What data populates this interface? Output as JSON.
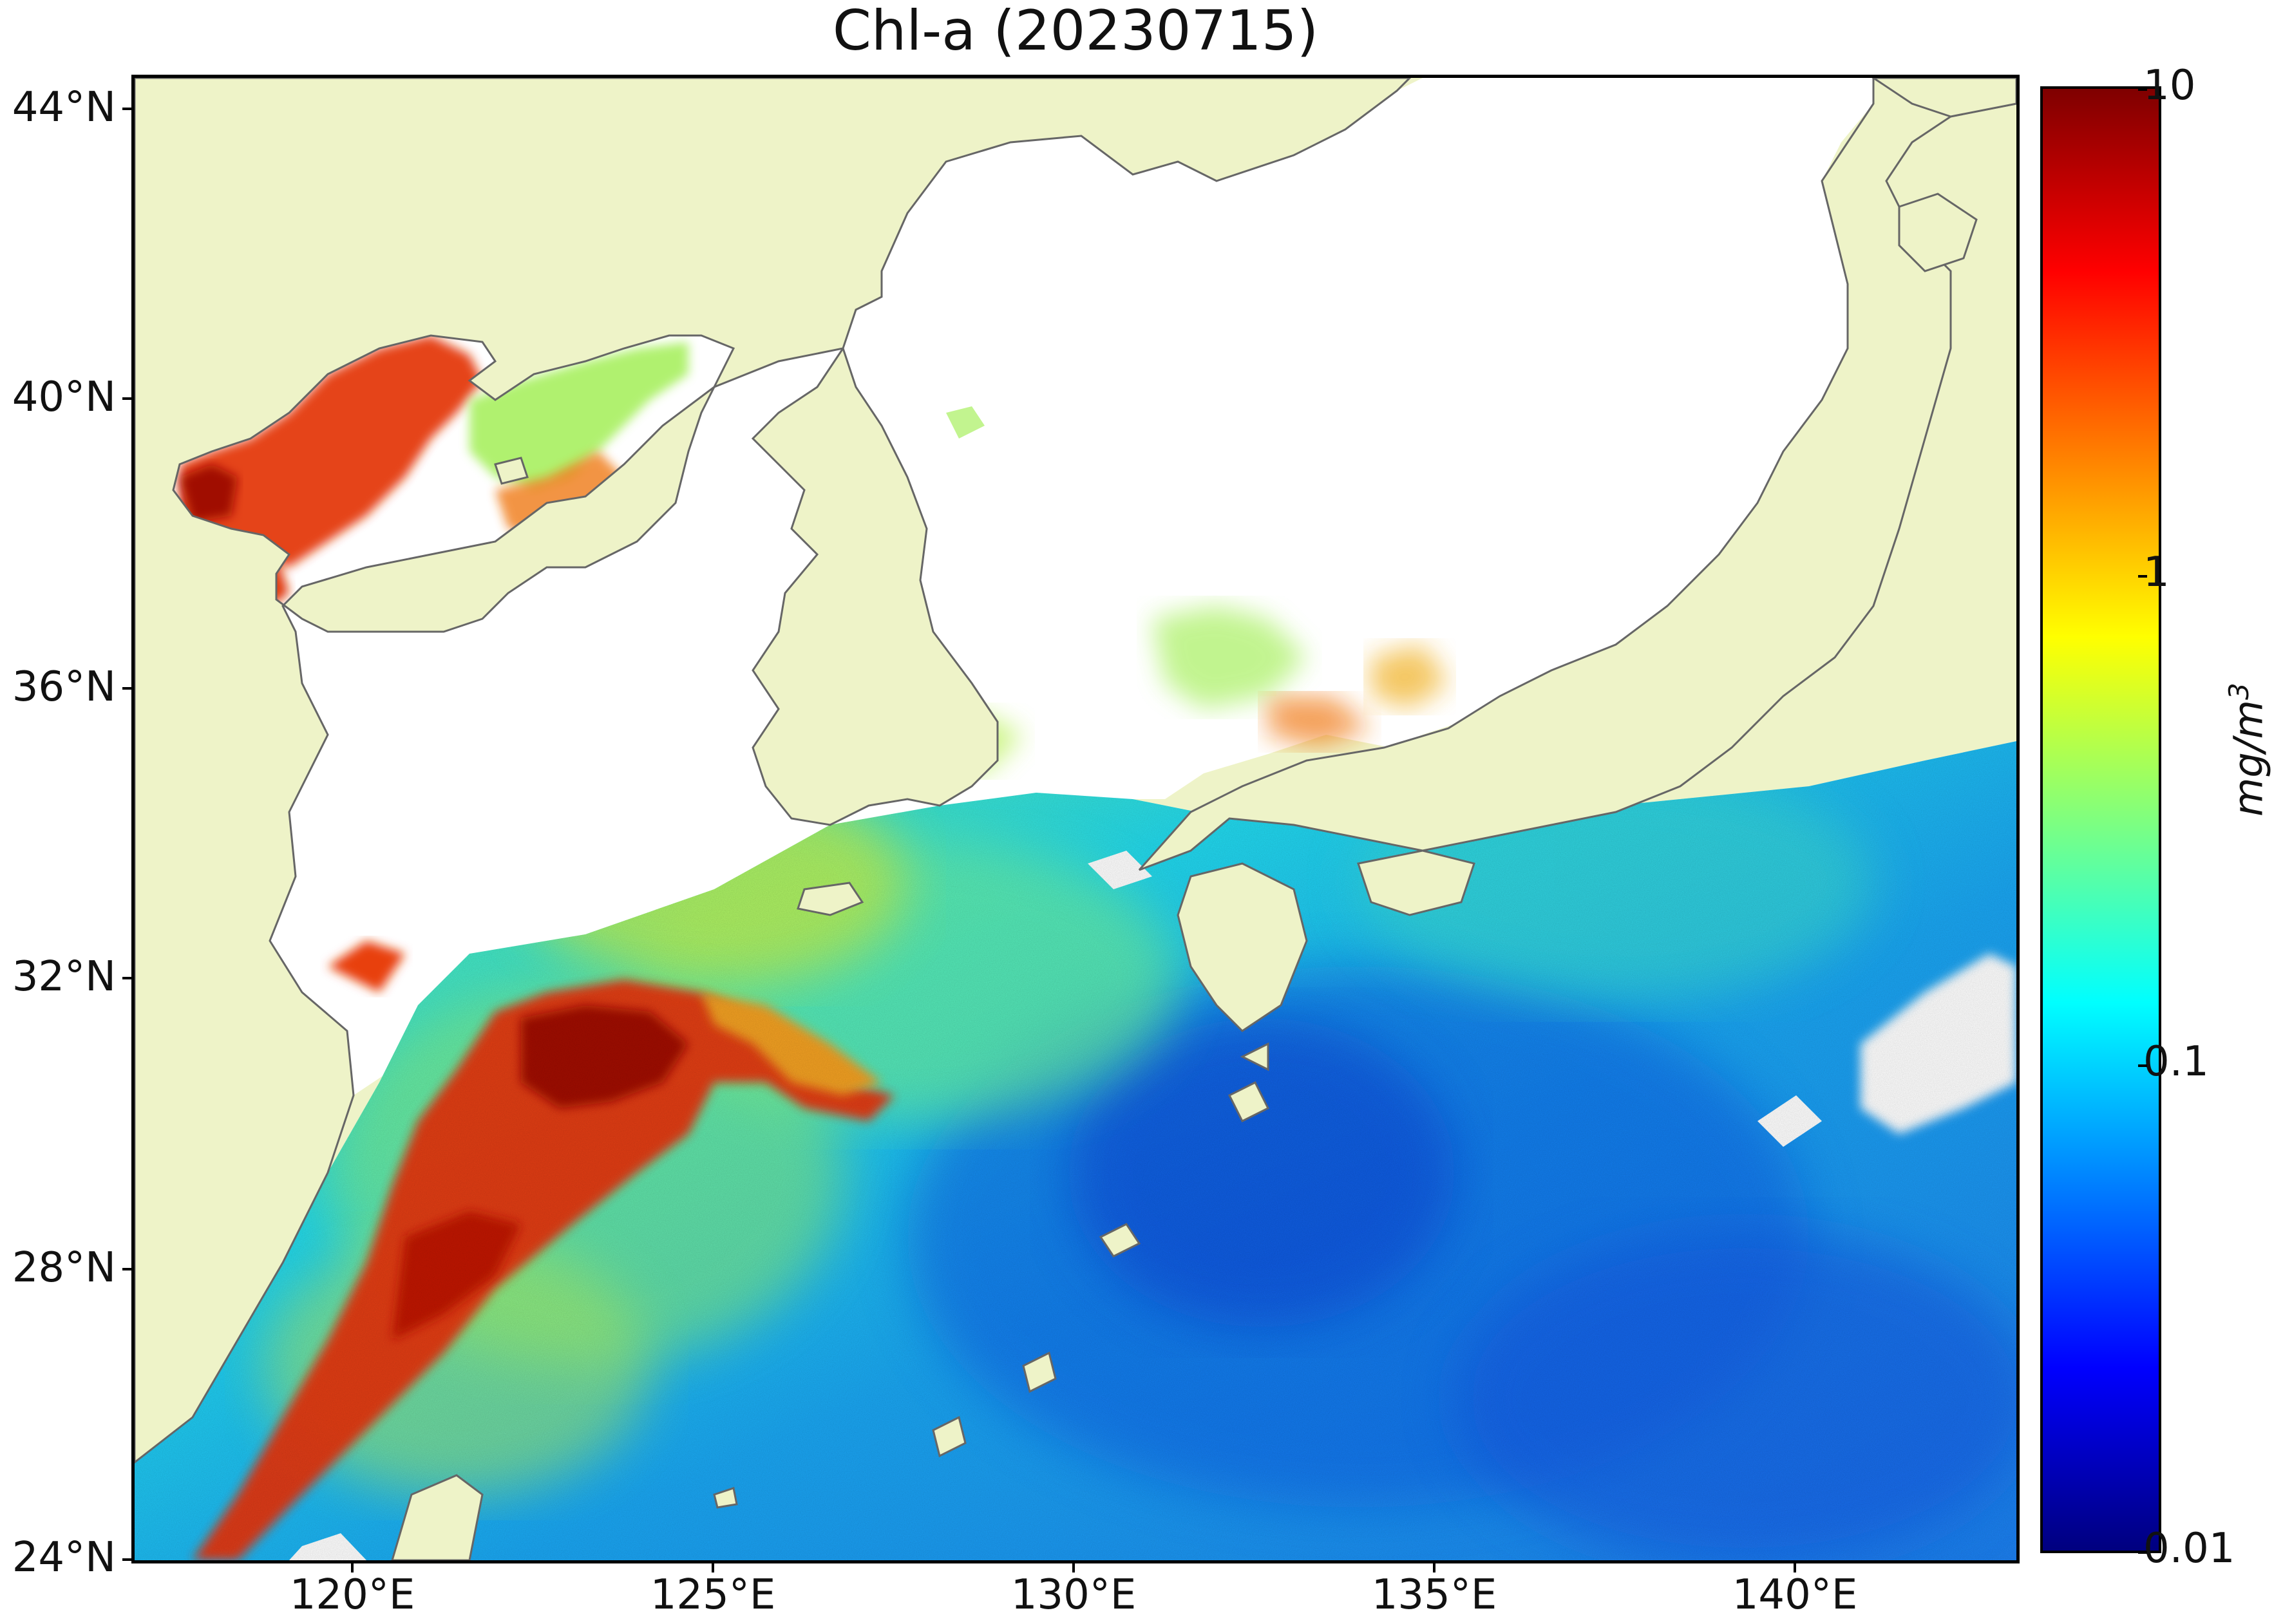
{
  "title": "Chl-a (20230715)",
  "axes": {
    "lat_ticks": [
      "44°N",
      "40°N",
      "36°N",
      "32°N",
      "28°N",
      "24°N"
    ],
    "lon_ticks": [
      "120°E",
      "125°E",
      "130°E",
      "135°E",
      "140°E"
    ]
  },
  "colorbar": {
    "tick_labels": [
      "10",
      "1",
      "0.1",
      "0.01"
    ],
    "unit": "mg/m",
    "unit_exponent": "3",
    "scale": "log",
    "range": [
      0.01,
      10
    ],
    "colors": [
      "#00007f",
      "#0000ff",
      "#007fff",
      "#00ffff",
      "#7fff7f",
      "#ffff00",
      "#ff7f00",
      "#ff0000",
      "#7f0000"
    ]
  },
  "map": {
    "land_color": "#eef3c8",
    "coastline_color": "#666666",
    "no_data_color": "#ffffff"
  }
}
